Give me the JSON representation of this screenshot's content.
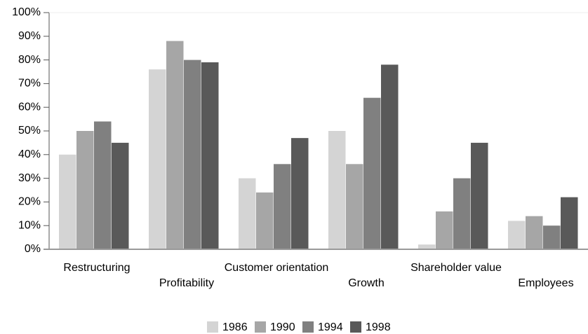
{
  "chart_data": {
    "type": "bar",
    "categories": [
      "Restructuring",
      "Profitability",
      "Customer orientation",
      "Growth",
      "Shareholder value",
      "Employees"
    ],
    "series": [
      {
        "name": "1986",
        "color": "#d4d4d4",
        "values": [
          40,
          76,
          30,
          50,
          2,
          12
        ]
      },
      {
        "name": "1990",
        "color": "#a6a6a6",
        "values": [
          50,
          88,
          24,
          36,
          16,
          14
        ]
      },
      {
        "name": "1994",
        "color": "#808080",
        "values": [
          54,
          80,
          36,
          64,
          30,
          10
        ]
      },
      {
        "name": "1998",
        "color": "#595959",
        "values": [
          45,
          79,
          47,
          78,
          45,
          22
        ]
      }
    ],
    "ylim": [
      0,
      100
    ],
    "yticks": [
      {
        "value": 0,
        "label": "0%"
      },
      {
        "value": 10,
        "label": "10%"
      },
      {
        "value": 20,
        "label": "20%"
      },
      {
        "value": 30,
        "label": "30%"
      },
      {
        "value": 40,
        "label": "40%"
      },
      {
        "value": 50,
        "label": "50%"
      },
      {
        "value": 60,
        "label": "60%"
      },
      {
        "value": 70,
        "label": "70%"
      },
      {
        "value": 80,
        "label": "80%"
      },
      {
        "value": 90,
        "label": "90%"
      },
      {
        "value": 100,
        "label": "100%"
      }
    ],
    "grid": false,
    "legend": "bottom"
  }
}
